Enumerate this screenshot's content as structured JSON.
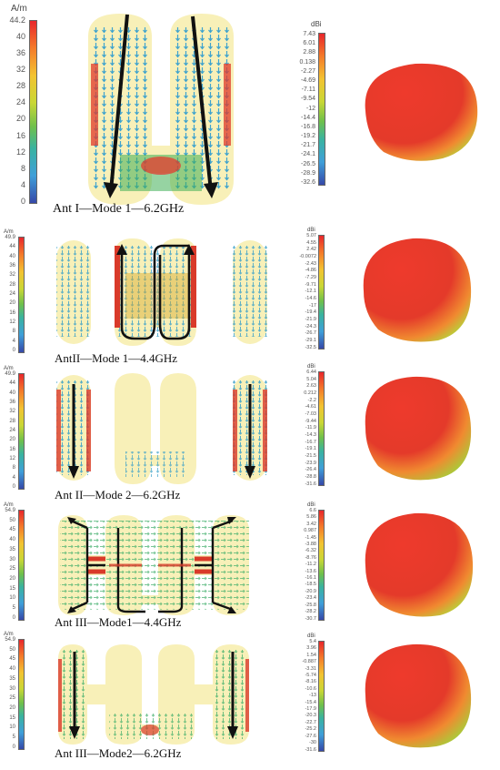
{
  "rows": [
    {
      "caption": "Ant I—Mode 1—6.2GHz",
      "current_unit": "A/m",
      "current_ticks": [
        "44.2",
        "40",
        "36",
        "32",
        "28",
        "24",
        "20",
        "16",
        "12",
        "8",
        "4",
        "0"
      ],
      "gain_unit": "dBi",
      "gain_ticks": [
        "7.43",
        "6.01",
        "2.88",
        "0.138",
        "-2.27",
        "-4.69",
        "-7.11",
        "-9.54",
        "-12",
        "-14.4",
        "-16.8",
        "-19.2",
        "-21.7",
        "-24.1",
        "-26.5",
        "-28.9",
        "-32.6"
      ]
    },
    {
      "caption": "AntII—Mode 1—4.4GHz",
      "current_unit": "A/m",
      "current_ticks": [
        "49.9",
        "44",
        "40",
        "36",
        "32",
        "28",
        "24",
        "20",
        "16",
        "12",
        "8",
        "4",
        "0"
      ],
      "gain_unit": "dBi",
      "gain_ticks": [
        "5.07",
        "4.55",
        "2.42",
        "-0.0072",
        "-2.43",
        "-4.86",
        "-7.29",
        "-9.71",
        "-12.1",
        "-14.6",
        "-17",
        "-19.4",
        "-21.9",
        "-24.3",
        "-26.7",
        "-29.1",
        "-32.5"
      ]
    },
    {
      "caption": "Ant II—Mode 2—6.2GHz",
      "current_unit": "A/m",
      "current_ticks": [
        "49.9",
        "44",
        "40",
        "36",
        "32",
        "28",
        "24",
        "20",
        "16",
        "12",
        "8",
        "4",
        "0"
      ],
      "gain_unit": "dBi",
      "gain_ticks": [
        "6.44",
        "5.04",
        "2.63",
        "0.212",
        "-2.2",
        "-4.61",
        "-7.03",
        "-9.44",
        "-11.9",
        "-14.3",
        "-16.7",
        "-19.1",
        "-21.5",
        "-23.9",
        "-26.4",
        "-28.8",
        "-31.6"
      ]
    },
    {
      "caption": "Ant III—Mode1—4.4GHz",
      "current_unit": "A/m",
      "current_ticks": [
        "54.9",
        "50",
        "45",
        "40",
        "35",
        "30",
        "25",
        "20",
        "15",
        "10",
        "5",
        "0"
      ],
      "gain_unit": "dBi",
      "gain_ticks": [
        "6.6",
        "5.86",
        "3.42",
        "0.987",
        "-1.45",
        "-3.88",
        "-6.32",
        "-8.76",
        "-11.2",
        "-13.6",
        "-16.1",
        "-18.5",
        "-20.9",
        "-23.4",
        "-25.8",
        "-28.2",
        "-30.7"
      ]
    },
    {
      "caption": "Ant III—Mode2—6.2GHz",
      "current_unit": "A/m",
      "current_ticks": [
        "54.9",
        "50",
        "45",
        "40",
        "35",
        "30",
        "25",
        "20",
        "15",
        "10",
        "5",
        "0"
      ],
      "gain_unit": "dBi",
      "gain_ticks": [
        "5.4",
        "3.96",
        "1.54",
        "-0.887",
        "-3.31",
        "-5.74",
        "-8.16",
        "-10.6",
        "-13",
        "-15.4",
        "-17.9",
        "-20.3",
        "-22.7",
        "-25.2",
        "-27.6",
        "-30",
        "-31.6"
      ]
    }
  ]
}
